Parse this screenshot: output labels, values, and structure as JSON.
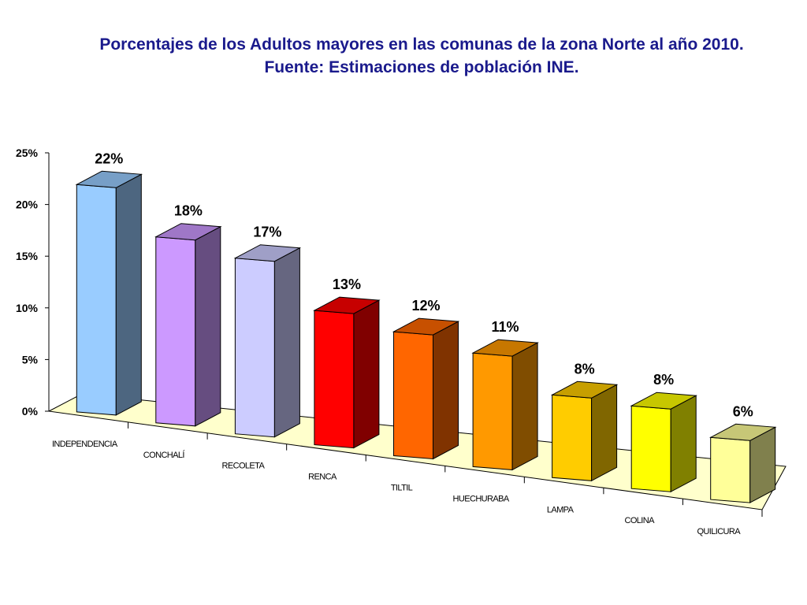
{
  "title": {
    "line1": "Porcentajes  de los Adultos mayores en las comunas de la zona Norte al año 2010.",
    "line2": "Fuente: Estimaciones de población INE."
  },
  "chart_data": {
    "type": "bar",
    "three_d": true,
    "categories": [
      "INDEPENDENCIA",
      "CONCHALÍ",
      "RECOLETA",
      "RENCA",
      "TILTIL",
      "HUECHURABA",
      "LAMPA",
      "COLINA",
      "QUILICURA"
    ],
    "values": [
      22,
      18,
      17,
      13,
      12,
      11,
      8,
      8,
      6
    ],
    "data_labels": [
      "22%",
      "18%",
      "17%",
      "13%",
      "12%",
      "11%",
      "8%",
      "8%",
      "6%"
    ],
    "yticks": [
      "0%",
      "5%",
      "10%",
      "15%",
      "20%",
      "25%"
    ],
    "ylim": [
      0,
      25
    ],
    "grid": false,
    "legend": "none",
    "floor_color": "#ffffcc",
    "colors": [
      "#99ccff",
      "#cc99ff",
      "#ccccff",
      "#ff0000",
      "#ff6600",
      "#ff9900",
      "#ffcc00",
      "#ffff00",
      "#ffff99"
    ]
  }
}
